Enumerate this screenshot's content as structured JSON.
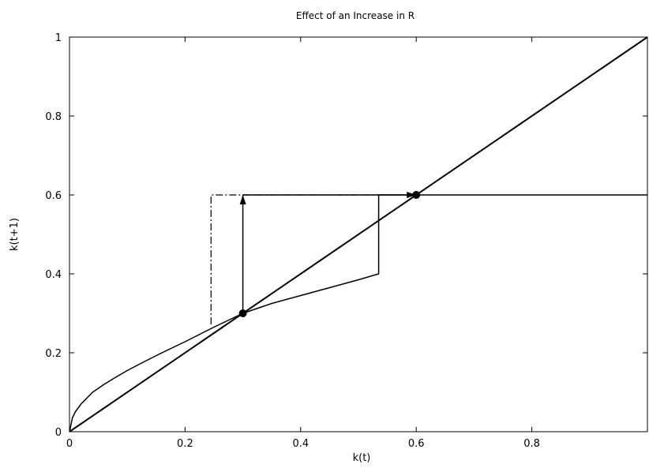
{
  "chart_data": {
    "type": "line",
    "title": "Effect of an Increase in R",
    "xlabel": "k(t)",
    "ylabel": "k(t+1)",
    "xlim": [
      0,
      1
    ],
    "ylim": [
      0,
      1
    ],
    "grid": false,
    "legend": "none",
    "x_ticks": [
      {
        "value": 0,
        "label": "0"
      },
      {
        "value": 0.2,
        "label": "0.2"
      },
      {
        "value": 0.4,
        "label": "0.4"
      },
      {
        "value": 0.6,
        "label": "0.6"
      },
      {
        "value": 0.8,
        "label": "0.8"
      }
    ],
    "y_ticks": [
      {
        "value": 0,
        "label": "0"
      },
      {
        "value": 0.2,
        "label": "0.2"
      },
      {
        "value": 0.4,
        "label": "0.4"
      },
      {
        "value": 0.6,
        "label": "0.6"
      },
      {
        "value": 0.8,
        "label": "0.8"
      },
      {
        "value": 1,
        "label": "1"
      }
    ],
    "series": [
      {
        "style": "solid",
        "points": [
          [
            0,
            0
          ],
          [
            1,
            1
          ]
        ]
      },
      {
        "style": "solid",
        "points": [
          [
            0,
            0
          ],
          [
            0.005,
            0.035
          ],
          [
            0.01,
            0.05
          ],
          [
            0.02,
            0.07
          ],
          [
            0.04,
            0.1
          ],
          [
            0.06,
            0.12
          ],
          [
            0.08,
            0.138
          ],
          [
            0.1,
            0.155
          ],
          [
            0.13,
            0.178
          ],
          [
            0.16,
            0.2
          ],
          [
            0.2,
            0.228
          ],
          [
            0.25,
            0.265
          ],
          [
            0.3,
            0.3
          ],
          [
            0.35,
            0.325
          ],
          [
            0.4,
            0.345
          ],
          [
            0.45,
            0.365
          ],
          [
            0.5,
            0.385
          ],
          [
            0.535,
            0.4
          ],
          [
            0.535,
            0.6
          ],
          [
            1,
            0.6
          ]
        ]
      },
      {
        "style": "dash-dot",
        "points": [
          [
            0.245,
            0.272
          ],
          [
            0.245,
            0.6
          ],
          [
            0.535,
            0.6
          ]
        ]
      }
    ],
    "arrows": [
      {
        "from": [
          0.3,
          0.3
        ],
        "to": [
          0.3,
          0.6
        ]
      },
      {
        "from": [
          0.3,
          0.6
        ],
        "to": [
          0.6,
          0.6
        ]
      }
    ],
    "markers": [
      [
        0.3,
        0.3
      ],
      [
        0.6,
        0.6
      ]
    ]
  }
}
